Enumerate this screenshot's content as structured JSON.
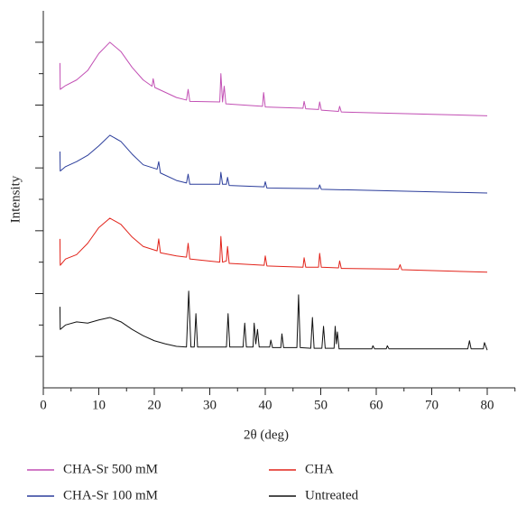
{
  "chart_data": {
    "type": "line",
    "x_label": "2θ (deg)",
    "y_label": "Intensity",
    "xlim": [
      0,
      85
    ],
    "xticks": [
      0,
      10,
      20,
      30,
      40,
      50,
      60,
      70,
      80
    ],
    "xminorticks": [
      5,
      15,
      25,
      35,
      45,
      55,
      65,
      75,
      85
    ],
    "ylim": [
      -0.5,
      5.5
    ],
    "yticks": [
      0,
      1,
      2,
      3,
      4,
      5
    ],
    "yminorticks": [
      0.5,
      1.5,
      2.5,
      3.5,
      4.5
    ],
    "ytick_labels": false,
    "grid": false,
    "legend_position": "bottom",
    "series": [
      {
        "name": "CHA-Sr 500 mM",
        "color": "#c24fb4",
        "x": [
          3,
          3.05,
          4,
          6,
          8,
          10,
          12,
          14,
          16,
          18,
          19.6,
          19.8,
          20.1,
          24,
          25.8,
          26.1,
          26.4,
          31.8,
          32,
          32.3,
          32.6,
          32.9,
          39.5,
          39.7,
          40,
          46.8,
          47,
          47.3,
          49.6,
          49.8,
          50.1,
          53.2,
          53.4,
          53.7,
          80
        ],
        "values": [
          4.67,
          4.25,
          4.31,
          4.4,
          4.55,
          4.82,
          5.0,
          4.85,
          4.6,
          4.4,
          4.3,
          4.42,
          4.28,
          4.12,
          4.08,
          4.25,
          4.06,
          4.05,
          4.5,
          4.05,
          4.3,
          4.02,
          3.98,
          4.2,
          3.97,
          3.95,
          4.06,
          3.94,
          3.93,
          4.05,
          3.92,
          3.9,
          3.98,
          3.89,
          3.83
        ]
      },
      {
        "name": "CHA",
        "color": "#e2231a",
        "x": [
          3,
          3.05,
          4,
          6,
          8,
          10,
          12,
          14,
          16,
          18,
          20.5,
          20.8,
          21.1,
          24,
          25.8,
          26.1,
          26.4,
          31.8,
          32,
          32.3,
          33,
          33.2,
          33.5,
          39.8,
          40,
          40.3,
          46.8,
          47,
          47.3,
          49.6,
          49.8,
          50.1,
          53.2,
          53.4,
          53.7,
          64,
          64.3,
          64.6,
          80
        ],
        "values": [
          1.87,
          1.45,
          1.55,
          1.62,
          1.8,
          2.05,
          2.2,
          2.1,
          1.9,
          1.75,
          1.68,
          1.87,
          1.65,
          1.6,
          1.58,
          1.8,
          1.55,
          1.5,
          1.91,
          1.5,
          1.52,
          1.75,
          1.48,
          1.45,
          1.6,
          1.44,
          1.42,
          1.57,
          1.42,
          1.42,
          1.64,
          1.42,
          1.41,
          1.52,
          1.4,
          1.39,
          1.46,
          1.38,
          1.34
        ]
      },
      {
        "name": "CHA-Sr 100 mM",
        "color": "#2b3d9b",
        "x": [
          3,
          3.05,
          4,
          6,
          8,
          10,
          12,
          14,
          16,
          18,
          20.5,
          20.8,
          21.1,
          24,
          25.8,
          26.1,
          26.4,
          31.8,
          32,
          32.3,
          33,
          33.2,
          33.5,
          39.8,
          40,
          40.3,
          49.6,
          49.8,
          50.1,
          80
        ],
        "values": [
          3.26,
          2.95,
          3.02,
          3.1,
          3.2,
          3.35,
          3.52,
          3.42,
          3.22,
          3.05,
          2.98,
          3.1,
          2.92,
          2.8,
          2.76,
          2.9,
          2.74,
          2.74,
          2.93,
          2.74,
          2.74,
          2.85,
          2.72,
          2.7,
          2.78,
          2.68,
          2.67,
          2.73,
          2.66,
          2.6
        ]
      },
      {
        "name": "Untreated",
        "color": "#111111",
        "x": [
          3,
          3.05,
          4,
          6,
          8,
          10,
          12,
          14,
          16,
          18,
          20,
          22,
          24,
          25.8,
          26.2,
          26.6,
          27.2,
          27.5,
          27.8,
          33,
          33.3,
          33.6,
          36,
          36.3,
          36.6,
          37.8,
          38,
          38.3,
          38.6,
          38.9,
          40.8,
          41,
          41.3,
          42.8,
          43,
          43.3,
          45.7,
          46,
          46.3,
          48.2,
          48.5,
          48.8,
          50.2,
          50.5,
          50.8,
          52.4,
          52.6,
          52.8,
          53,
          53.3,
          59.2,
          59.4,
          59.7,
          61.8,
          62,
          62.3,
          70,
          76.5,
          76.8,
          77.1,
          79.3,
          79.5,
          80
        ],
        "values": [
          0.79,
          0.43,
          0.5,
          0.55,
          0.53,
          0.58,
          0.62,
          0.55,
          0.43,
          0.33,
          0.25,
          0.2,
          0.16,
          0.15,
          1.04,
          0.15,
          0.15,
          0.68,
          0.15,
          0.15,
          0.68,
          0.15,
          0.15,
          0.53,
          0.15,
          0.15,
          0.53,
          0.2,
          0.43,
          0.15,
          0.15,
          0.26,
          0.14,
          0.14,
          0.36,
          0.14,
          0.14,
          0.98,
          0.14,
          0.13,
          0.62,
          0.13,
          0.13,
          0.48,
          0.13,
          0.13,
          0.48,
          0.2,
          0.39,
          0.12,
          0.12,
          0.17,
          0.12,
          0.12,
          0.17,
          0.12,
          0.12,
          0.12,
          0.25,
          0.12,
          0.12,
          0.22,
          0.1
        ]
      }
    ]
  }
}
